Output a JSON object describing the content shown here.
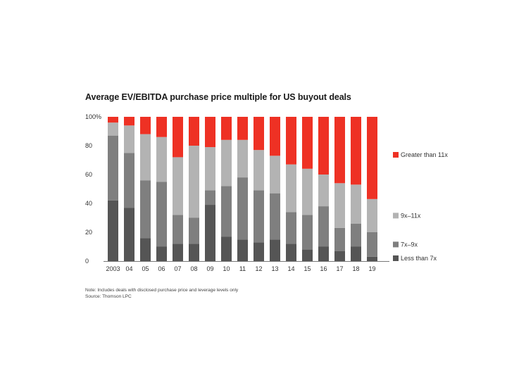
{
  "chart_data": {
    "type": "bar",
    "stacked": true,
    "title": "Average EV/EBITDA purchase price multiple for US buyout deals",
    "xlabel": "",
    "ylabel": "",
    "ylim": [
      0,
      100
    ],
    "y_ticks": [
      "0",
      "20",
      "40",
      "60",
      "80",
      "100%"
    ],
    "y_tick_values": [
      0,
      20,
      40,
      60,
      80,
      100
    ],
    "categories": [
      "2003",
      "04",
      "05",
      "06",
      "07",
      "08",
      "09",
      "10",
      "11",
      "12",
      "13",
      "14",
      "15",
      "16",
      "17",
      "18",
      "19"
    ],
    "series": [
      {
        "name": "Less than 7x",
        "color": "#555555",
        "values": [
          42,
          37,
          16,
          10,
          12,
          12,
          39,
          17,
          15,
          13,
          15,
          12,
          8,
          10,
          7,
          10,
          3
        ]
      },
      {
        "name": "7x–9x",
        "color": "#7f7f7f",
        "values": [
          45,
          38,
          40,
          45,
          20,
          18,
          10,
          35,
          43,
          36,
          32,
          22,
          24,
          28,
          16,
          16,
          17
        ]
      },
      {
        "name": "9x–11x",
        "color": "#b3b3b3",
        "values": [
          9,
          19,
          32,
          31,
          40,
          50,
          30,
          32,
          26,
          28,
          26,
          33,
          32,
          22,
          31,
          27,
          23
        ]
      },
      {
        "name": "Greater than 11x",
        "color": "#ee3124",
        "values": [
          4,
          6,
          12,
          14,
          28,
          20,
          21,
          16,
          16,
          23,
          27,
          33,
          36,
          40,
          46,
          47,
          57
        ]
      }
    ],
    "legend_position": "right"
  },
  "notes": [
    "Note: Includes deals with disclosed purchase price and leverage levels only",
    "Source: Thomson LPC"
  ]
}
